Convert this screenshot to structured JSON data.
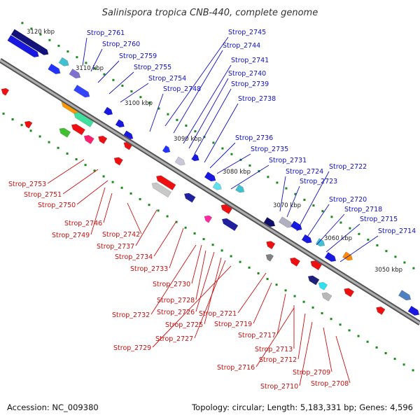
{
  "title": "Salinispora tropica CNB-440, complete genome",
  "footer": {
    "accession": "Accession: NC_009380",
    "info": "Topology: circular; Length: 5,183,331 bp; Genes: 4,596"
  },
  "ticks": [
    "3120 kbp",
    "3110 kbp",
    "3100 kbp",
    "3090 kbp",
    "3080 kbp",
    "3070 kbp",
    "3060 kbp",
    "3050 kbp"
  ],
  "forward_labels": [
    "Strop_2761",
    "Strop_2760",
    "Strop_2759",
    "Strop_2755",
    "Strop_2754",
    "Strop_2748",
    "Strop_2745",
    "Strop_2744",
    "Strop_2741",
    "Strop_2740",
    "Strop_2739",
    "Strop_2738",
    "Strop_2736",
    "Strop_2735",
    "Strop_2731",
    "Strop_2724",
    "Strop_2723",
    "Strop_2722",
    "Strop_2720",
    "Strop_2718",
    "Strop_2715",
    "Strop_2714"
  ],
  "reverse_labels": [
    "Strop_2753",
    "Strop_2751",
    "Strop_2750",
    "Strop_2746",
    "Strop_2749",
    "Strop_2742",
    "Strop_2737",
    "Strop_2734",
    "Strop_2733",
    "Strop_2730",
    "Strop_2728",
    "Strop_2732",
    "Strop_2726",
    "Strop_2725",
    "Strop_2727",
    "Strop_2729",
    "Strop_2721",
    "Strop_2719",
    "Strop_2717",
    "Strop_2713",
    "Strop_2712",
    "Strop_2716",
    "Strop_2709",
    "Strop_2710",
    "Strop_2708"
  ],
  "colors": {
    "forward_gene": "#1010ee",
    "reverse_gene": "#ee1010",
    "backbone": "#8a8a8a",
    "tick_dot": "#1a8a1a",
    "forward_label": "#1010cc",
    "reverse_label": "#cc1010"
  }
}
